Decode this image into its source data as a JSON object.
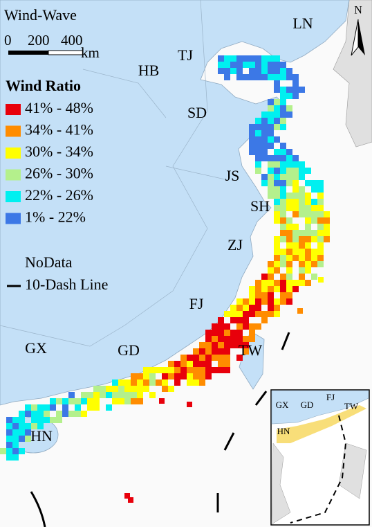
{
  "title": "Wind-Wave",
  "scale_bar": {
    "labels": [
      "0",
      "200",
      "400"
    ],
    "unit": "km"
  },
  "north_arrow": "N",
  "legend": {
    "title": "Wind Ratio",
    "items": [
      {
        "label": "41% - 48%",
        "color": "#e8000b"
      },
      {
        "label": "34% - 41%",
        "color": "#ff8c00"
      },
      {
        "label": "30% - 34%",
        "color": "#ffff00"
      },
      {
        "label": "26% - 30%",
        "color": "#b4f08c"
      },
      {
        "label": "22% - 26%",
        "color": "#00f0f0"
      },
      {
        "label": "1% - 22%",
        "color": "#3c78e6"
      }
    ],
    "nodata": "NoData",
    "dash_line": "10-Dash Line"
  },
  "regions": [
    "LN",
    "TJ",
    "HB",
    "SD",
    "JS",
    "SH",
    "ZJ",
    "FJ",
    "GX",
    "GD",
    "TW",
    "HN"
  ],
  "inset": {
    "labels": [
      "GX",
      "GD",
      "FJ",
      "TW",
      "HN"
    ]
  }
}
